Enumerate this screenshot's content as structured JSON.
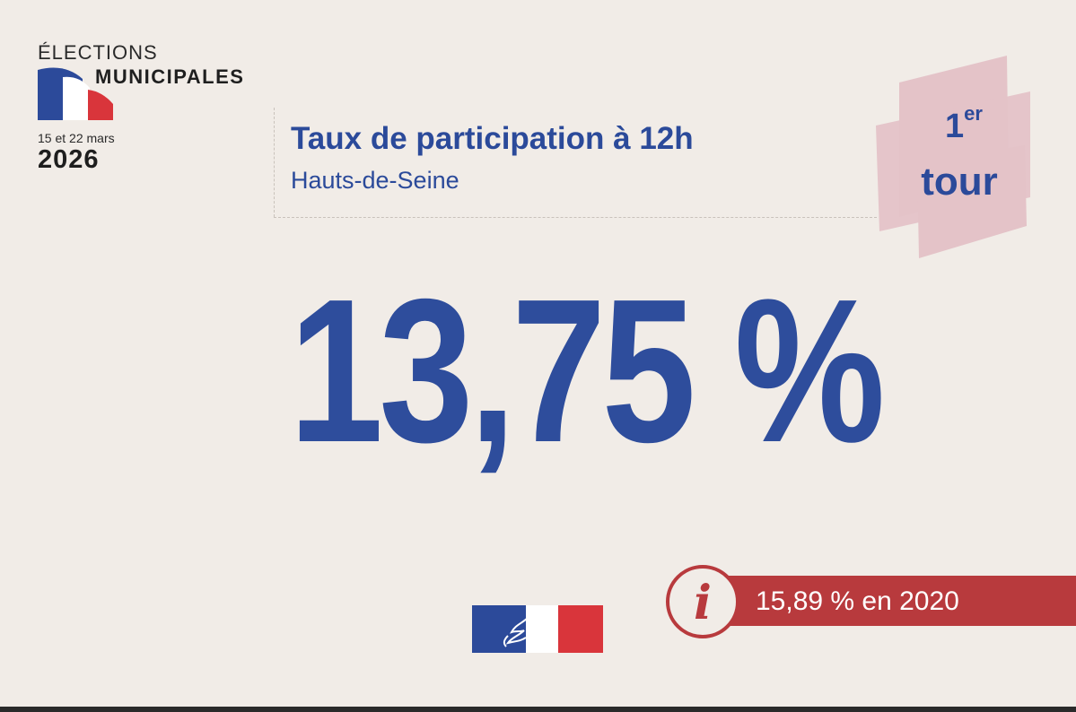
{
  "logo": {
    "line1": "ÉLECTIONS",
    "line2": "MUNICIPALES",
    "dates": "15 et 22 mars",
    "year": "2026",
    "flag_colors": [
      "#2c4a9a",
      "#ffffff",
      "#d9353b"
    ]
  },
  "title": {
    "main": "Taux de participation à 12h",
    "sub": "Hauts-de-Seine"
  },
  "round_badge": {
    "number": "1",
    "suffix": "er",
    "word": "tour",
    "background_color": "#e4c3c8"
  },
  "turnout": {
    "value": "13,75 %"
  },
  "comparison": {
    "icon": "info-icon",
    "text": "15,89 % en 2020",
    "color": "#b83a3d"
  },
  "emblem": {
    "icon": "marianne-icon",
    "colors": [
      "#2c4a9a",
      "#ffffff",
      "#d9353b"
    ]
  },
  "colors": {
    "background": "#f1ece7",
    "primary_blue": "#2b4a9a",
    "accent_red": "#b83a3d"
  }
}
